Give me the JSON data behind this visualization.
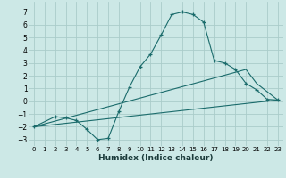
{
  "xlabel": "Humidex (Indice chaleur)",
  "ylabel": "",
  "bg_color": "#cce8e6",
  "grid_color": "#aaccca",
  "line_color": "#1a6b6b",
  "xlim": [
    -0.5,
    23.5
  ],
  "ylim": [
    -3.5,
    7.8
  ],
  "yticks": [
    -3,
    -2,
    -1,
    0,
    1,
    2,
    3,
    4,
    5,
    6,
    7
  ],
  "xticks": [
    0,
    1,
    2,
    3,
    4,
    5,
    6,
    7,
    8,
    9,
    10,
    11,
    12,
    13,
    14,
    15,
    16,
    17,
    18,
    19,
    20,
    21,
    22,
    23
  ],
  "line1_x": [
    0,
    2,
    3,
    4,
    5,
    6,
    7,
    8,
    9,
    10,
    11,
    12,
    13,
    14,
    15,
    16,
    17,
    18,
    19,
    20,
    21,
    22,
    23
  ],
  "line1_y": [
    -2.0,
    -1.2,
    -1.3,
    -1.5,
    -2.2,
    -3.0,
    -2.9,
    -0.8,
    1.1,
    2.7,
    3.7,
    5.2,
    6.8,
    7.0,
    6.8,
    6.2,
    3.2,
    3.0,
    2.5,
    1.4,
    0.9,
    0.15,
    0.1
  ],
  "line2_x": [
    0,
    23
  ],
  "line2_y": [
    -2.0,
    0.1
  ],
  "line3_x": [
    0,
    20,
    21,
    23
  ],
  "line3_y": [
    -2.0,
    2.5,
    1.4,
    0.1
  ]
}
